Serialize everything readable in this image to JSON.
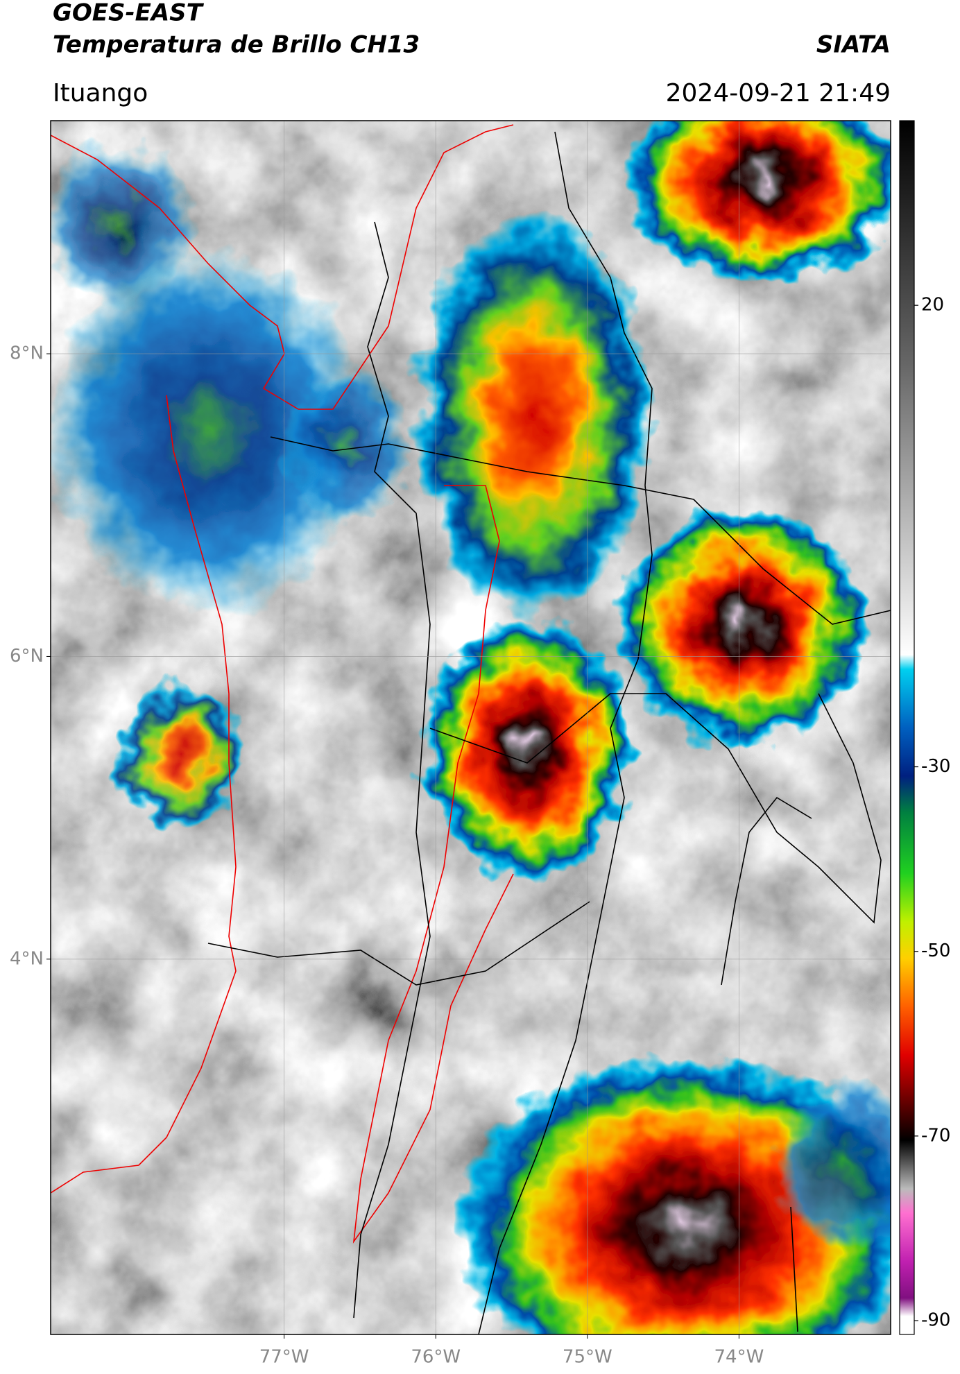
{
  "header": {
    "satellite": "GOES-EAST",
    "product": "Temperatura de Brillo CH13",
    "source": "SIATA",
    "region": "Ituango",
    "datetime": "2024-09-21 21:49"
  },
  "map": {
    "xlim": [
      -78.54,
      -73.0
    ],
    "ylim": [
      1.52,
      9.54
    ],
    "xticks": [
      {
        "value": -77,
        "label": "77°W"
      },
      {
        "value": -76,
        "label": "76°W"
      },
      {
        "value": -75,
        "label": "75°W"
      },
      {
        "value": -74,
        "label": "74°W"
      }
    ],
    "yticks": [
      {
        "value": 8,
        "label": "8°N"
      },
      {
        "value": 6,
        "label": "6°N"
      },
      {
        "value": 4,
        "label": "4°N"
      }
    ],
    "grid": true
  },
  "colorbar": {
    "lim": [
      -91.5,
      40
    ],
    "ticks": [
      20,
      -30,
      -50,
      -70,
      -90
    ]
  }
}
